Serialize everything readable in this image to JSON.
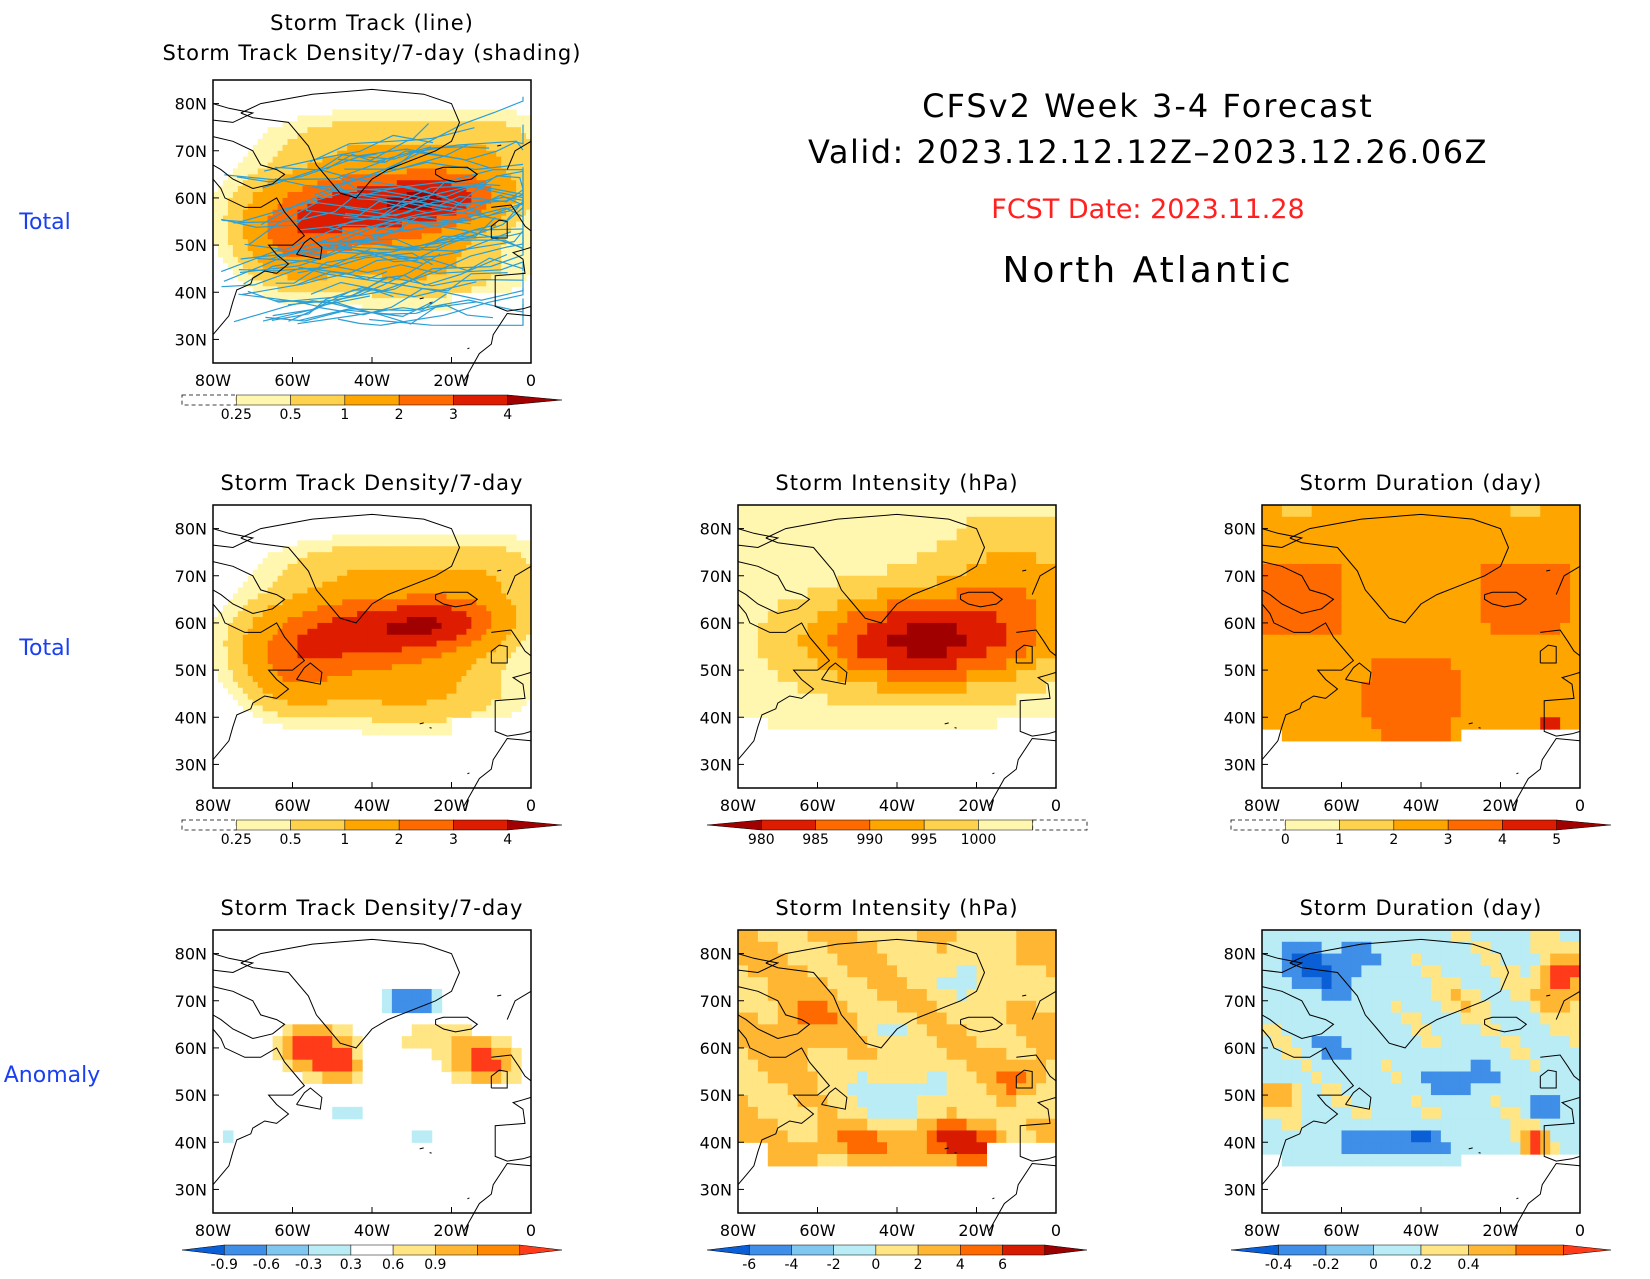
{
  "header": {
    "title": "CFSv2 Week 3-4 Forecast",
    "valid": "Valid: 2023.12.12.12Z–2023.12.26.06Z",
    "fcst_date": "FCST Date: 2023.11.28",
    "region": "North Atlantic"
  },
  "row_labels": [
    "Total",
    "Total",
    "Anomaly"
  ],
  "axes": {
    "lat_labels": [
      "80N",
      "70N",
      "60N",
      "50N",
      "40N",
      "30N"
    ],
    "lon_labels": [
      "80W",
      "60W",
      "40W",
      "20W",
      "0"
    ]
  },
  "colors": {
    "land_outline": "#000000",
    "track_line": "#2a9fd6",
    "row_label": "#1a3ff0",
    "fcst_date": "#ff2020"
  },
  "colorbars": {
    "density": {
      "colors": [
        "#ffffff",
        "#fff7b0",
        "#ffd24d",
        "#ffa500",
        "#ff6a00",
        "#dd1c00",
        "#a00000"
      ],
      "labels": [
        "0.25",
        "0.5",
        "1",
        "2",
        "3",
        "4"
      ],
      "left_dashed": true,
      "right_triangle": true
    },
    "intensity": {
      "colors": [
        "#a00000",
        "#dd1c00",
        "#ff6a00",
        "#ffa500",
        "#ffd24d",
        "#fff7b0",
        "#ffffff"
      ],
      "labels": [
        "980",
        "985",
        "990",
        "995",
        "1000"
      ],
      "left_triangle": true,
      "right_dashed": true
    },
    "duration": {
      "colors": [
        "#ffffff",
        "#fff7b0",
        "#ffd24d",
        "#ffa500",
        "#ff6a00",
        "#dd1c00",
        "#a00000"
      ],
      "labels": [
        "0",
        "1",
        "2",
        "3",
        "4",
        "5"
      ],
      "left_dashed": true,
      "right_triangle": true
    },
    "density_anom": {
      "colors": [
        "#0b5fd6",
        "#3f8ee8",
        "#7fc6f0",
        "#b9ecf5",
        "#ffffff",
        "#ffe583",
        "#ffb733",
        "#ff8800",
        "#ff3b1a"
      ],
      "labels": [
        "-0.9",
        "-0.6",
        "-0.3",
        "0.3",
        "0.6",
        "0.9"
      ],
      "left_triangle": true,
      "right_triangle": true
    },
    "intensity_anom": {
      "colors": [
        "#0b5fd6",
        "#3f8ee8",
        "#7fc6f0",
        "#b9ecf5",
        "#ffe583",
        "#ffb733",
        "#ff6a00",
        "#d81a00",
        "#9a0000"
      ],
      "labels": [
        "-6",
        "-4",
        "-2",
        "0",
        "2",
        "4",
        "6"
      ],
      "left_triangle": true,
      "right_triangle": true
    },
    "duration_anom": {
      "colors": [
        "#0b5fd6",
        "#3f8ee8",
        "#7fc6f0",
        "#b9ecf5",
        "#ffe583",
        "#ffb733",
        "#ff6a00",
        "#ff3b1a"
      ],
      "labels": [
        "-0.4",
        "-0.2",
        "0",
        "0.2",
        "0.4"
      ],
      "left_triangle": true,
      "right_triangle": true
    }
  },
  "panels": [
    {
      "id": "p1",
      "title1": "Storm Track (line)",
      "title2": "Storm Track Density/7-day (shading)",
      "field": "density",
      "tracks": true,
      "colorbar": "density"
    },
    {
      "id": "p2",
      "title": "Storm Track Density/7-day",
      "field": "density",
      "tracks": false,
      "colorbar": "density"
    },
    {
      "id": "p3",
      "title": "Storm Intensity (hPa)",
      "field": "intensity",
      "tracks": false,
      "colorbar": "intensity"
    },
    {
      "id": "p4",
      "title": "Storm Duration (day)",
      "field": "duration",
      "tracks": false,
      "colorbar": "duration"
    },
    {
      "id": "p5",
      "title": "Storm Track Density/7-day",
      "field": "density_anom",
      "tracks": false,
      "colorbar": "density_anom"
    },
    {
      "id": "p6",
      "title": "Storm Intensity (hPa)",
      "field": "intensity_anom",
      "tracks": false,
      "colorbar": "intensity_anom"
    },
    {
      "id": "p7",
      "title": "Storm Duration (day)",
      "field": "duration_anom",
      "tracks": false,
      "colorbar": "duration_anom"
    }
  ]
}
